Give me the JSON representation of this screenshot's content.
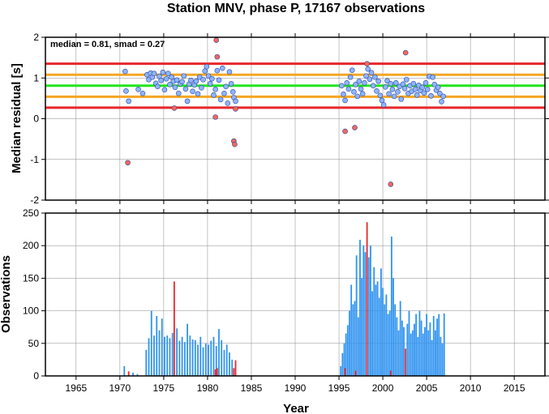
{
  "chart_data": [
    {
      "panel": "residuals",
      "type": "scatter",
      "title": "Station MNV, phase P, 17167 observations",
      "xlabel": "",
      "ylabel": "Median residual [s]",
      "xlim": [
        1961.5,
        2018.5
      ],
      "ylim": [
        -2,
        2
      ],
      "xticks": [
        1965,
        1970,
        1975,
        1980,
        1985,
        1990,
        1995,
        2000,
        2005,
        2010,
        2015
      ],
      "yticks": [
        -2,
        -1,
        0,
        1,
        2
      ],
      "grid": true,
      "annotation": "median = 0.81, smad = 0.27",
      "reference_lines": [
        {
          "y": 1.35,
          "color": "#e8272b"
        },
        {
          "y": 1.08,
          "color": "#f5a623"
        },
        {
          "y": 0.81,
          "color": "#22e51f"
        },
        {
          "y": 0.54,
          "color": "#f5a623"
        },
        {
          "y": 0.27,
          "color": "#e8272b"
        }
      ],
      "series": [
        {
          "style": "inlier",
          "color": "#8fb4ff",
          "points": [
            [
              1970.6,
              1.16
            ],
            [
              1970.7,
              0.68
            ],
            [
              1971.0,
              0.43
            ],
            [
              1972.1,
              0.72
            ],
            [
              1972.6,
              0.62
            ],
            [
              1973.1,
              1.08
            ],
            [
              1973.3,
              0.96
            ],
            [
              1973.5,
              1.12
            ],
            [
              1973.7,
              1.02
            ],
            [
              1973.9,
              1.11
            ],
            [
              1974.1,
              0.87
            ],
            [
              1974.3,
              0.79
            ],
            [
              1974.5,
              1.04
            ],
            [
              1974.7,
              0.94
            ],
            [
              1974.9,
              1.14
            ],
            [
              1975.1,
              0.71
            ],
            [
              1975.3,
              0.98
            ],
            [
              1975.5,
              1.11
            ],
            [
              1975.7,
              0.84
            ],
            [
              1975.9,
              1.02
            ],
            [
              1976.1,
              0.92
            ],
            [
              1976.3,
              0.77
            ],
            [
              1976.5,
              0.95
            ],
            [
              1976.7,
              0.62
            ],
            [
              1976.9,
              0.86
            ],
            [
              1977.1,
              0.91
            ],
            [
              1977.3,
              1.05
            ],
            [
              1977.5,
              0.73
            ],
            [
              1977.7,
              0.43
            ],
            [
              1977.9,
              0.85
            ],
            [
              1978.1,
              0.94
            ],
            [
              1978.3,
              0.67
            ],
            [
              1978.5,
              0.83
            ],
            [
              1978.7,
              0.92
            ],
            [
              1978.9,
              0.61
            ],
            [
              1979.1,
              1.02
            ],
            [
              1979.3,
              0.76
            ],
            [
              1979.5,
              0.96
            ],
            [
              1979.7,
              1.17
            ],
            [
              1979.9,
              1.28
            ],
            [
              1980.1,
              1.05
            ],
            [
              1980.3,
              0.86
            ],
            [
              1980.5,
              0.98
            ],
            [
              1980.7,
              0.58
            ],
            [
              1980.9,
              0.72
            ],
            [
              1981.1,
              1.18
            ],
            [
              1981.3,
              0.95
            ],
            [
              1981.5,
              0.47
            ],
            [
              1981.7,
              1.24
            ],
            [
              1981.9,
              0.62
            ],
            [
              1982.1,
              0.79
            ],
            [
              1982.3,
              0.38
            ],
            [
              1982.5,
              1.15
            ],
            [
              1982.7,
              0.86
            ],
            [
              1982.9,
              0.66
            ],
            [
              1983.0,
              0.52
            ],
            [
              1983.2,
              0.43
            ],
            [
              1995.3,
              0.81
            ],
            [
              1995.5,
              0.6
            ],
            [
              1995.7,
              0.45
            ],
            [
              1995.9,
              0.88
            ],
            [
              1996.1,
              0.73
            ],
            [
              1996.3,
              1.02
            ],
            [
              1996.5,
              1.19
            ],
            [
              1996.7,
              0.66
            ],
            [
              1996.9,
              0.84
            ],
            [
              1997.1,
              0.55
            ],
            [
              1997.3,
              0.92
            ],
            [
              1997.5,
              0.73
            ],
            [
              1997.7,
              0.61
            ],
            [
              1997.9,
              0.88
            ],
            [
              1998.1,
              1.05
            ],
            [
              1998.3,
              1.22
            ],
            [
              1998.5,
              0.97
            ],
            [
              1998.7,
              1.13
            ],
            [
              1998.9,
              0.81
            ],
            [
              1999.1,
              1.02
            ],
            [
              1999.3,
              0.68
            ],
            [
              1999.5,
              0.92
            ],
            [
              1999.7,
              0.57
            ],
            [
              1999.9,
              0.45
            ],
            [
              2000.1,
              0.34
            ],
            [
              2000.3,
              0.78
            ],
            [
              2000.5,
              0.93
            ],
            [
              2000.7,
              0.61
            ],
            [
              2000.9,
              0.86
            ],
            [
              2001.1,
              0.72
            ],
            [
              2001.3,
              0.55
            ],
            [
              2001.5,
              0.88
            ],
            [
              2001.7,
              0.66
            ],
            [
              2001.9,
              0.79
            ],
            [
              2002.1,
              0.48
            ],
            [
              2002.3,
              0.85
            ],
            [
              2002.5,
              0.74
            ],
            [
              2002.7,
              0.96
            ],
            [
              2002.9,
              0.62
            ],
            [
              2003.1,
              0.81
            ],
            [
              2003.3,
              0.67
            ],
            [
              2003.5,
              0.86
            ],
            [
              2003.7,
              0.72
            ],
            [
              2003.9,
              0.58
            ],
            [
              2004.1,
              0.82
            ],
            [
              2004.3,
              0.69
            ],
            [
              2004.5,
              0.77
            ],
            [
              2004.7,
              0.63
            ],
            [
              2004.9,
              0.88
            ],
            [
              2005.1,
              0.72
            ],
            [
              2005.3,
              1.04
            ],
            [
              2005.5,
              0.56
            ],
            [
              2005.7,
              1.02
            ],
            [
              2005.9,
              0.84
            ],
            [
              2006.1,
              0.7
            ],
            [
              2006.3,
              0.77
            ],
            [
              2006.5,
              0.62
            ],
            [
              2006.7,
              0.42
            ],
            [
              2006.9,
              0.55
            ]
          ]
        },
        {
          "style": "outlier",
          "color": "#f2675c",
          "points": [
            [
              1970.9,
              -1.08
            ],
            [
              1976.2,
              0.26
            ],
            [
              1980.9,
              0.04
            ],
            [
              1981.0,
              1.93
            ],
            [
              1981.1,
              1.52
            ],
            [
              1983.0,
              -0.55
            ],
            [
              1983.1,
              -0.63
            ],
            [
              1983.2,
              0.24
            ],
            [
              1995.7,
              -0.31
            ],
            [
              1996.8,
              -0.22
            ],
            [
              1998.2,
              1.35
            ],
            [
              2000.9,
              -1.61
            ],
            [
              2002.6,
              1.62
            ]
          ]
        }
      ]
    },
    {
      "panel": "observations",
      "type": "bar",
      "title": "",
      "xlabel": "Year",
      "ylabel": "Observations",
      "xlim": [
        1961.5,
        2018.5
      ],
      "ylim": [
        0,
        250
      ],
      "xticks": [
        1965,
        1970,
        1975,
        1980,
        1985,
        1990,
        1995,
        2000,
        2005,
        2010,
        2015
      ],
      "yticks": [
        0,
        50,
        100,
        150,
        200,
        250
      ],
      "grid": true,
      "series": [
        {
          "style": "inlier",
          "color": "#2f93f0",
          "bars": [
            [
              1970.5,
              15
            ],
            [
              1971.5,
              5
            ],
            [
              1972.0,
              3
            ],
            [
              1973.0,
              40
            ],
            [
              1973.3,
              58
            ],
            [
              1973.6,
              100
            ],
            [
              1973.9,
              62
            ],
            [
              1974.2,
              92
            ],
            [
              1974.5,
              70
            ],
            [
              1974.8,
              88
            ],
            [
              1975.1,
              60
            ],
            [
              1975.4,
              62
            ],
            [
              1975.7,
              58
            ],
            [
              1976.0,
              66
            ],
            [
              1976.5,
              73
            ],
            [
              1976.8,
              54
            ],
            [
              1977.1,
              60
            ],
            [
              1977.4,
              52
            ],
            [
              1977.7,
              80
            ],
            [
              1978.0,
              62
            ],
            [
              1978.3,
              56
            ],
            [
              1978.6,
              55
            ],
            [
              1978.9,
              48
            ],
            [
              1979.2,
              60
            ],
            [
              1979.5,
              44
            ],
            [
              1979.8,
              50
            ],
            [
              1980.1,
              48
            ],
            [
              1980.4,
              54
            ],
            [
              1980.7,
              60
            ],
            [
              1981.0,
              46
            ],
            [
              1981.3,
              72
            ],
            [
              1981.6,
              55
            ],
            [
              1981.9,
              40
            ],
            [
              1982.2,
              48
            ],
            [
              1982.5,
              36
            ],
            [
              1982.8,
              25
            ],
            [
              1995.2,
              15
            ],
            [
              1995.4,
              35
            ],
            [
              1995.6,
              50
            ],
            [
              1995.8,
              65
            ],
            [
              1996.0,
              78
            ],
            [
              1996.2,
              100
            ],
            [
              1996.4,
              140
            ],
            [
              1996.6,
              110
            ],
            [
              1996.8,
              115
            ],
            [
              1997.0,
              185
            ],
            [
              1997.2,
              90
            ],
            [
              1997.4,
              209
            ],
            [
              1997.6,
              150
            ],
            [
              1997.8,
              200
            ],
            [
              1998.0,
              190
            ],
            [
              1998.4,
              182
            ],
            [
              1998.6,
              200
            ],
            [
              1998.8,
              130
            ],
            [
              1999.0,
              167
            ],
            [
              1999.2,
              140
            ],
            [
              1999.4,
              145
            ],
            [
              1999.6,
              120
            ],
            [
              1999.8,
              165
            ],
            [
              2000.0,
              135
            ],
            [
              2000.2,
              110
            ],
            [
              2000.4,
              125
            ],
            [
              2000.6,
              95
            ],
            [
              2000.8,
              100
            ],
            [
              2001.0,
              214
            ],
            [
              2001.2,
              150
            ],
            [
              2001.4,
              110
            ],
            [
              2001.6,
              90
            ],
            [
              2001.8,
              70
            ],
            [
              2002.0,
              115
            ],
            [
              2002.2,
              85
            ],
            [
              2002.4,
              75
            ],
            [
              2002.8,
              80
            ],
            [
              2003.0,
              100
            ],
            [
              2003.2,
              65
            ],
            [
              2003.4,
              70
            ],
            [
              2003.6,
              80
            ],
            [
              2003.8,
              95
            ],
            [
              2004.0,
              60
            ],
            [
              2004.2,
              100
            ],
            [
              2004.4,
              85
            ],
            [
              2004.6,
              65
            ],
            [
              2004.8,
              75
            ],
            [
              2005.0,
              95
            ],
            [
              2005.2,
              70
            ],
            [
              2005.4,
              82
            ],
            [
              2005.6,
              55
            ],
            [
              2005.8,
              92
            ],
            [
              2006.0,
              70
            ],
            [
              2006.2,
              88
            ],
            [
              2006.4,
              95
            ],
            [
              2006.6,
              60
            ],
            [
              2006.8,
              50
            ],
            [
              2007.0,
              96
            ]
          ]
        },
        {
          "style": "outlier",
          "color": "#e8272b",
          "bars": [
            [
              1971.0,
              7
            ],
            [
              1976.2,
              145
            ],
            [
              1980.9,
              10
            ],
            [
              1981.1,
              12
            ],
            [
              1983.0,
              12
            ],
            [
              1983.2,
              24
            ],
            [
              1995.7,
              12
            ],
            [
              1996.9,
              8
            ],
            [
              1998.2,
              236
            ],
            [
              2000.9,
              8
            ],
            [
              2002.6,
              42
            ]
          ]
        }
      ]
    }
  ]
}
